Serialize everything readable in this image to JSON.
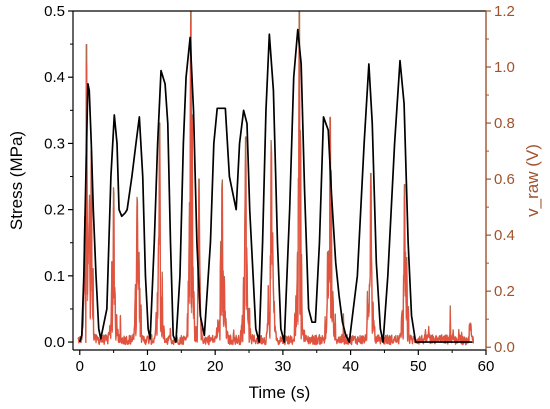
{
  "chart_data": {
    "type": "line",
    "x_axis": {
      "label": "Time (s)",
      "range": [
        -1,
        60
      ],
      "ticks": [
        0,
        10,
        20,
        30,
        40,
        50,
        60
      ]
    },
    "y_axis_left": {
      "label": "Stress (MPa)",
      "range": [
        -0.012,
        0.5
      ],
      "ticks": [
        0.0,
        0.1,
        0.2,
        0.3,
        0.4,
        0.5
      ],
      "tick_labels": [
        "0.0",
        "0.1",
        "0.2",
        "0.3",
        "0.4",
        "0.5"
      ]
    },
    "y_axis_right": {
      "label": "v_raw (V)",
      "range": [
        -0.01,
        1.2
      ],
      "ticks": [
        0.0,
        0.2,
        0.4,
        0.6,
        0.8,
        1.0,
        1.2
      ],
      "tick_labels": [
        "0.0",
        "0.2",
        "0.4",
        "0.6",
        "0.8",
        "1.0",
        "1.2"
      ],
      "color": "#a0522d"
    },
    "series": [
      {
        "axis": "left",
        "color": "#000000",
        "points": [
          [
            0,
            0
          ],
          [
            0.3,
            0.01
          ],
          [
            0.6,
            0.1
          ],
          [
            1.0,
            0.3
          ],
          [
            1.2,
            0.39
          ],
          [
            1.4,
            0.38
          ],
          [
            1.7,
            0.3
          ],
          [
            2.0,
            0.2
          ],
          [
            2.4,
            0.1
          ],
          [
            2.8,
            0.02
          ],
          [
            3.1,
            0.005
          ],
          [
            4.0,
            0.05
          ],
          [
            4.6,
            0.25
          ],
          [
            5.1,
            0.343
          ],
          [
            5.5,
            0.3
          ],
          [
            5.8,
            0.2
          ],
          [
            6.2,
            0.19
          ],
          [
            6.7,
            0.195
          ],
          [
            7.0,
            0.2
          ],
          [
            7.7,
            0.25
          ],
          [
            8.3,
            0.3
          ],
          [
            8.8,
            0.34
          ],
          [
            9.3,
            0.25
          ],
          [
            9.7,
            0.1
          ],
          [
            10.1,
            0.02
          ],
          [
            10.4,
            0.005
          ],
          [
            11.0,
            0.15
          ],
          [
            11.5,
            0.3
          ],
          [
            12.0,
            0.41
          ],
          [
            12.6,
            0.39
          ],
          [
            13.0,
            0.33
          ],
          [
            13.4,
            0.15
          ],
          [
            13.8,
            0.01
          ],
          [
            14.2,
            0
          ],
          [
            14.8,
            0.1
          ],
          [
            15.3,
            0.3
          ],
          [
            15.7,
            0.4
          ],
          [
            16.3,
            0.46
          ],
          [
            16.8,
            0.35
          ],
          [
            17.3,
            0.15
          ],
          [
            17.8,
            0.04
          ],
          [
            18.4,
            0.01
          ],
          [
            19.3,
            0.15
          ],
          [
            19.8,
            0.3
          ],
          [
            20.3,
            0.353
          ],
          [
            21.5,
            0.353
          ],
          [
            22.1,
            0.25
          ],
          [
            22.5,
            0.23
          ],
          [
            23.1,
            0.2
          ],
          [
            23.6,
            0.3
          ],
          [
            24.2,
            0.35
          ],
          [
            24.7,
            0.33
          ],
          [
            25.1,
            0.2
          ],
          [
            25.6,
            0.1
          ],
          [
            26.0,
            0.02
          ],
          [
            26.5,
            0
          ],
          [
            27.0,
            0.15
          ],
          [
            27.5,
            0.35
          ],
          [
            28.0,
            0.465
          ],
          [
            28.6,
            0.38
          ],
          [
            29.2,
            0.15
          ],
          [
            29.7,
            0.02
          ],
          [
            30.2,
            0
          ],
          [
            31.0,
            0.2
          ],
          [
            31.6,
            0.4
          ],
          [
            32.2,
            0.472
          ],
          [
            32.7,
            0.42
          ],
          [
            33.2,
            0.23
          ],
          [
            33.8,
            0.05
          ],
          [
            34.3,
            0.03
          ],
          [
            34.8,
            0.03
          ],
          [
            35.4,
            0.15
          ],
          [
            36.0,
            0.34
          ],
          [
            36.7,
            0.32
          ],
          [
            37.2,
            0.22
          ],
          [
            37.8,
            0.12
          ],
          [
            38.3,
            0.07
          ],
          [
            38.8,
            0.03
          ],
          [
            39.3,
            0.01
          ],
          [
            39.8,
            0
          ],
          [
            41.0,
            0.1
          ],
          [
            42.0,
            0.3
          ],
          [
            42.7,
            0.42
          ],
          [
            43.2,
            0.33
          ],
          [
            43.8,
            0.12
          ],
          [
            44.4,
            0.02
          ],
          [
            44.8,
            0
          ],
          [
            45.5,
            0.1
          ],
          [
            46.5,
            0.3
          ],
          [
            47.3,
            0.425
          ],
          [
            47.9,
            0.36
          ],
          [
            48.5,
            0.15
          ],
          [
            49.0,
            0.04
          ],
          [
            49.6,
            0
          ],
          [
            50.5,
            0
          ],
          [
            52.0,
            0
          ],
          [
            54.0,
            0
          ],
          [
            56.0,
            0
          ],
          [
            58.0,
            0
          ]
        ]
      }
    ],
    "raw_signal_bursts": [
      {
        "t": 1.0,
        "peak": 1.08,
        "width": 0.9
      },
      {
        "t": 1.7,
        "peak": 0.7,
        "width": 0.7
      },
      {
        "t": 5.0,
        "peak": 0.55,
        "width": 1.0
      },
      {
        "t": 8.5,
        "peak": 0.52,
        "width": 0.9
      },
      {
        "t": 11.8,
        "peak": 0.8,
        "width": 1.0
      },
      {
        "t": 16.4,
        "peak": 1.2,
        "width": 0.9
      },
      {
        "t": 17.6,
        "peak": 0.6,
        "width": 0.7
      },
      {
        "t": 21.0,
        "peak": 0.58,
        "width": 1.2
      },
      {
        "t": 24.5,
        "peak": 0.75,
        "width": 1.0
      },
      {
        "t": 28.3,
        "peak": 0.7,
        "width": 1.0
      },
      {
        "t": 32.4,
        "peak": 1.2,
        "width": 1.0
      },
      {
        "t": 37.0,
        "peak": 0.82,
        "width": 1.0
      },
      {
        "t": 43.0,
        "peak": 0.62,
        "width": 0.9
      },
      {
        "t": 48.0,
        "peak": 0.58,
        "width": 0.9
      }
    ]
  }
}
